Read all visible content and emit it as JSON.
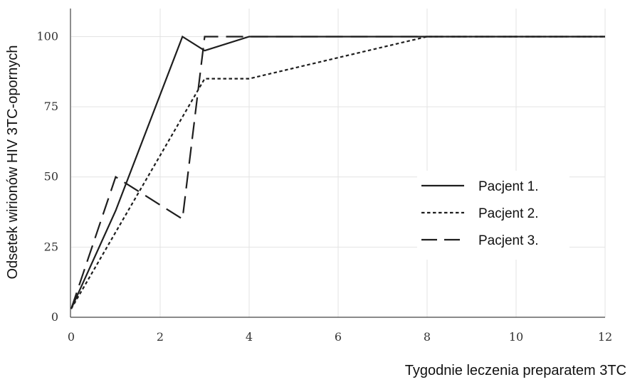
{
  "chart_data": {
    "type": "line",
    "title": "",
    "xlabel": "Tygodnie leczenia preparatem 3TC",
    "ylabel": "Odsetek wirionów HIV 3TC-opornych",
    "xlim": [
      0,
      12
    ],
    "ylim": [
      0,
      110
    ],
    "xticks": [
      0,
      2,
      4,
      6,
      8,
      10,
      12
    ],
    "yticks": [
      0,
      25,
      50,
      75,
      100
    ],
    "grid": true,
    "legend_position": "center-right",
    "series": [
      {
        "name": "Pacjent 1.",
        "style": "solid",
        "x": [
          0,
          1,
          2.5,
          3,
          4,
          8,
          12
        ],
        "y": [
          3,
          38,
          100,
          95,
          100,
          100,
          100
        ]
      },
      {
        "name": "Pacjent 2.",
        "style": "dotted",
        "x": [
          0,
          3,
          4,
          8,
          12
        ],
        "y": [
          3,
          85,
          85,
          100,
          100
        ]
      },
      {
        "name": "Pacjent 3.",
        "style": "dashed",
        "x": [
          0,
          1,
          2.5,
          3,
          4,
          8,
          12
        ],
        "y": [
          3,
          50,
          35,
          100,
          100,
          100,
          100
        ]
      }
    ],
    "colors": {
      "line": "#1e1e1e",
      "grid": "#e3e3e3",
      "axis": "#444444"
    }
  }
}
